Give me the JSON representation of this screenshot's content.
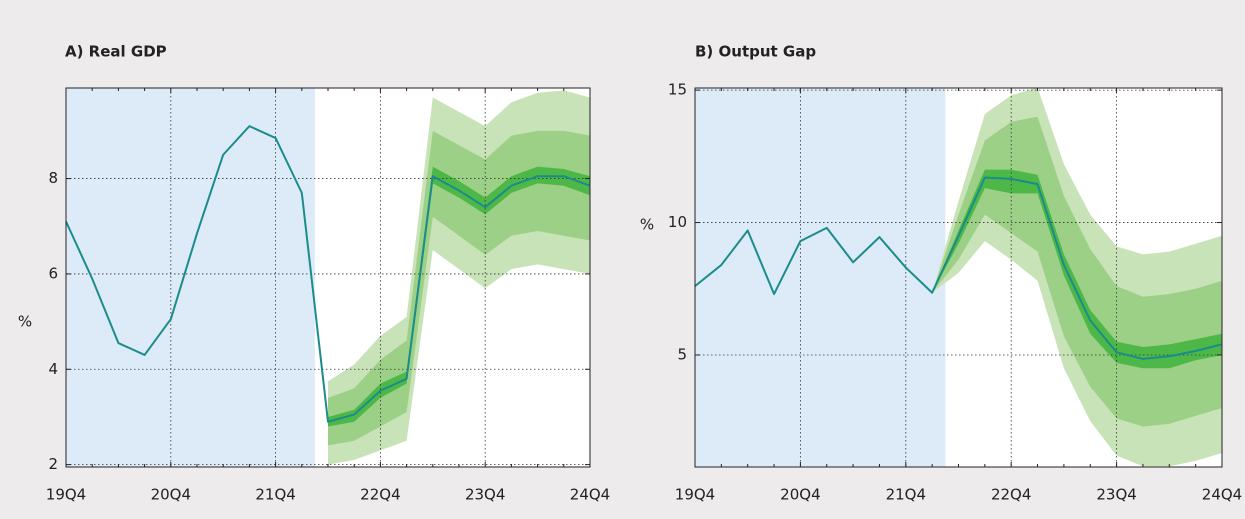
{
  "chart_data": [
    {
      "type": "line",
      "title": "A) Real GDP",
      "ylabel": "%",
      "categories": [
        "19Q4",
        null,
        null,
        null,
        "20Q4",
        null,
        null,
        null,
        "21Q4",
        null,
        null,
        null,
        "22Q4",
        null,
        null,
        null,
        "23Q4",
        null,
        null,
        null,
        "24Q4"
      ],
      "ylim": [
        1.95,
        9.9
      ],
      "yticks": [
        2,
        4,
        6,
        8
      ],
      "grid": true,
      "shaded_range": [
        0,
        9.5
      ],
      "shade_color": "#dcebf7",
      "series": [
        {
          "color": "#1b8c8c",
          "values": [
            7.1,
            5.9,
            4.55,
            4.3,
            5.05,
            6.85,
            8.5,
            9.1,
            8.85,
            7.7,
            2.9,
            3.05,
            3.55,
            3.8,
            8.05,
            7.75,
            7.4,
            7.85,
            8.05,
            8.05,
            7.85
          ]
        }
      ],
      "bands": [
        {
          "color": "#c8e3b8",
          "lower": [
            null,
            null,
            null,
            null,
            null,
            null,
            null,
            null,
            null,
            null,
            2.0,
            2.1,
            2.3,
            2.5,
            6.5,
            6.1,
            5.7,
            6.1,
            6.2,
            6.1,
            6.0
          ],
          "upper": [
            null,
            null,
            null,
            null,
            null,
            null,
            null,
            null,
            null,
            null,
            3.75,
            4.1,
            4.7,
            5.1,
            9.7,
            9.4,
            9.1,
            9.6,
            9.8,
            9.85,
            9.7
          ]
        },
        {
          "color": "#9dd087",
          "lower": [
            null,
            null,
            null,
            null,
            null,
            null,
            null,
            null,
            null,
            null,
            2.4,
            2.5,
            2.8,
            3.1,
            7.2,
            6.8,
            6.4,
            6.8,
            6.9,
            6.8,
            6.7
          ],
          "upper": [
            null,
            null,
            null,
            null,
            null,
            null,
            null,
            null,
            null,
            null,
            3.4,
            3.6,
            4.2,
            4.6,
            9.0,
            8.7,
            8.4,
            8.9,
            9.0,
            9.0,
            8.9
          ]
        },
        {
          "color": "#4db848",
          "lower": [
            null,
            null,
            null,
            null,
            null,
            null,
            null,
            null,
            null,
            null,
            2.8,
            2.9,
            3.4,
            3.7,
            7.9,
            7.6,
            7.25,
            7.7,
            7.9,
            7.85,
            7.65
          ],
          "upper": [
            null,
            null,
            null,
            null,
            null,
            null,
            null,
            null,
            null,
            null,
            3.0,
            3.15,
            3.7,
            3.95,
            8.25,
            7.95,
            7.6,
            8.05,
            8.25,
            8.2,
            8.05
          ]
        }
      ]
    },
    {
      "type": "line",
      "title": "B) Output Gap",
      "ylabel": "%",
      "categories": [
        "19Q4",
        null,
        null,
        null,
        "20Q4",
        null,
        null,
        null,
        "21Q4",
        null,
        null,
        null,
        "22Q4",
        null,
        null,
        null,
        "23Q4",
        null,
        null,
        null,
        "24Q4"
      ],
      "ylim": [
        0.77,
        15.08
      ],
      "yticks": [
        5,
        10,
        15
      ],
      "grid": true,
      "shaded_range": [
        0,
        9.5
      ],
      "shade_color": "#dcebf7",
      "series": [
        {
          "color": "#1b8c8c",
          "values": [
            7.6,
            8.4,
            9.7,
            7.3,
            9.3,
            9.8,
            8.5,
            9.45,
            8.3,
            7.35,
            9.5,
            11.7,
            11.65,
            11.45,
            8.4,
            6.3,
            5.1,
            4.85,
            4.95,
            5.15,
            5.4
          ]
        }
      ],
      "bands": [
        {
          "color": "#c8e3b8",
          "lower": [
            null,
            null,
            null,
            null,
            null,
            null,
            null,
            null,
            null,
            7.35,
            8.1,
            9.3,
            8.6,
            7.8,
            4.5,
            2.5,
            1.2,
            0.8,
            0.8,
            1.0,
            1.3
          ],
          "upper": [
            null,
            null,
            null,
            null,
            null,
            null,
            null,
            null,
            null,
            7.35,
            10.8,
            14.1,
            14.8,
            15.1,
            12.2,
            10.3,
            9.1,
            8.8,
            8.9,
            9.2,
            9.5
          ]
        },
        {
          "color": "#9dd087",
          "lower": [
            null,
            null,
            null,
            null,
            null,
            null,
            null,
            null,
            null,
            7.35,
            8.6,
            10.3,
            9.6,
            8.9,
            5.7,
            3.8,
            2.6,
            2.3,
            2.4,
            2.7,
            3.0
          ],
          "upper": [
            null,
            null,
            null,
            null,
            null,
            null,
            null,
            null,
            null,
            7.35,
            10.3,
            13.1,
            13.8,
            14.0,
            11.0,
            9.0,
            7.6,
            7.2,
            7.3,
            7.5,
            7.8
          ]
        },
        {
          "color": "#4db848",
          "lower": [
            null,
            null,
            null,
            null,
            null,
            null,
            null,
            null,
            null,
            7.35,
            9.2,
            11.3,
            11.1,
            11.1,
            8.0,
            5.8,
            4.7,
            4.5,
            4.5,
            4.8,
            5.0
          ],
          "upper": [
            null,
            null,
            null,
            null,
            null,
            null,
            null,
            null,
            null,
            7.35,
            9.7,
            12.0,
            12.0,
            11.8,
            8.8,
            6.7,
            5.5,
            5.3,
            5.4,
            5.6,
            5.8
          ]
        }
      ]
    }
  ]
}
